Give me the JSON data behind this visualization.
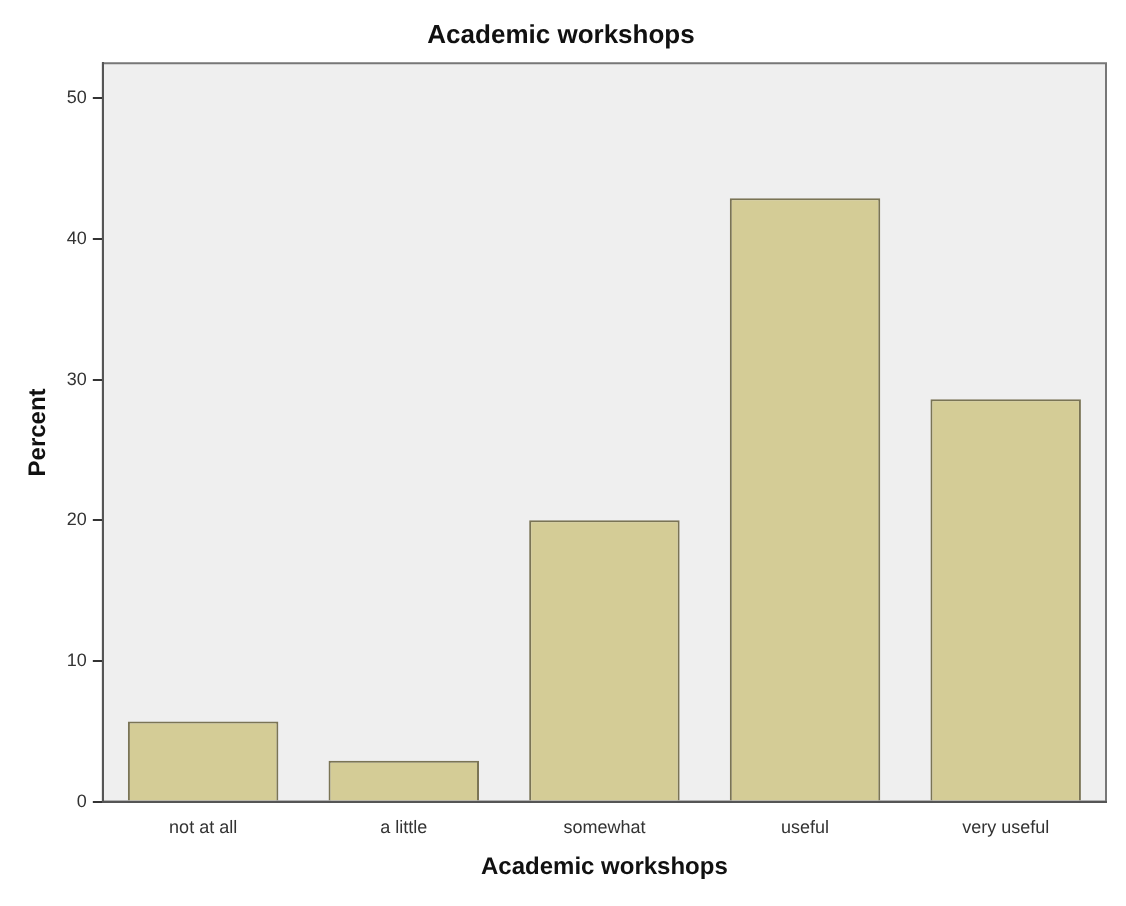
{
  "chart_data": {
    "type": "bar",
    "title": "Academic workshops",
    "xlabel": "Academic workshops",
    "ylabel": "Percent",
    "categories": [
      "not at all",
      "a little",
      "somewhat",
      "useful",
      "very useful"
    ],
    "values": [
      5.7,
      2.9,
      20.0,
      42.9,
      28.6
    ],
    "color": "#d4cc96",
    "ylim": [
      0,
      52.5
    ],
    "yticks": [
      0,
      10,
      20,
      30,
      40,
      50
    ],
    "grid": false,
    "legend": false
  }
}
